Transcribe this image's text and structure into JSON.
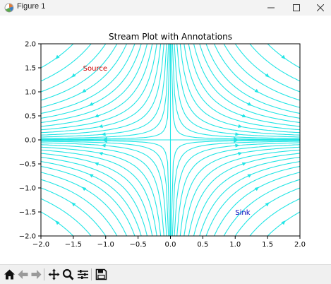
{
  "window": {
    "title": "Figure 1",
    "minimize_glyph": "—",
    "maximize_glyph": "☐",
    "close_glyph": "✕"
  },
  "toolbar": {
    "icons": [
      "home-icon",
      "back-arrow-icon",
      "forward-arrow-icon",
      "pan-icon",
      "zoom-icon",
      "subplots-config-icon",
      "save-icon"
    ]
  },
  "chart_data": {
    "type": "streamplot",
    "title": "Stream Plot with Annotations",
    "xlabel": "",
    "ylabel": "",
    "xlim": [
      -2.0,
      2.0
    ],
    "ylim": [
      -2.0,
      2.0
    ],
    "x_ticks": [
      "−2.0",
      "−1.5",
      "−1.0",
      "−0.5",
      "0.0",
      "0.5",
      "1.0",
      "1.5",
      "2.0"
    ],
    "y_ticks": [
      "2.0",
      "1.5",
      "1.0",
      "0.5",
      "0.0",
      "−0.5",
      "−1.0",
      "−1.5",
      "−2.0"
    ],
    "x_tick_values": [
      -2.0,
      -1.5,
      -1.0,
      -0.5,
      0.0,
      0.5,
      1.0,
      1.5,
      2.0
    ],
    "y_tick_values": [
      2.0,
      1.5,
      1.0,
      0.5,
      0.0,
      -0.5,
      -1.0,
      -1.5,
      -2.0
    ],
    "field": "saddle flow: inflow along y-axis toward origin, outflow along x-axis",
    "stream_color": "#22e5e5",
    "annotations": [
      {
        "text": "Source",
        "x": -1.35,
        "y": 1.5,
        "color": "#cc0000"
      },
      {
        "text": "Sink",
        "x": 1.0,
        "y": -1.5,
        "color": "#0000bb"
      }
    ],
    "grid": false,
    "legend": "none"
  }
}
